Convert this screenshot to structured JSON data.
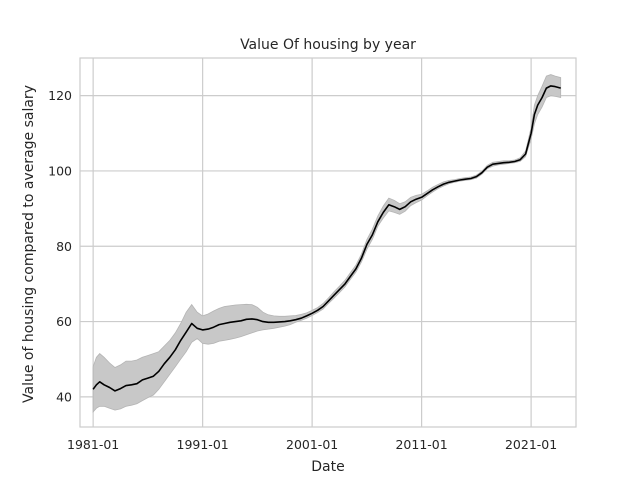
{
  "chart_data": {
    "type": "line",
    "title": "Value Of housing by year",
    "xlabel": "Date",
    "ylabel": "Value of housing compared to average salary",
    "x_ticks": [
      "1981-01",
      "1991-01",
      "2001-01",
      "2011-01",
      "2021-01"
    ],
    "y_ticks": [
      40,
      60,
      80,
      100,
      120
    ],
    "xlim": [
      1979.8,
      2025.1
    ],
    "ylim": [
      32,
      130
    ],
    "grid": true,
    "colors": {
      "line": "#000000",
      "band": "#c8c8c8",
      "band_edge": "#b4b4b4",
      "grid": "#cccccc",
      "frame": "#cccccc"
    },
    "series": [
      {
        "x": [
          1981.0,
          1981.3,
          1981.6,
          1982.0,
          1982.5,
          1983.0,
          1983.5,
          1984.0,
          1984.5,
          1985.0,
          1985.5,
          1986.0,
          1986.5,
          1987.0,
          1987.5,
          1988.0,
          1988.5,
          1989.0,
          1989.5,
          1990.0,
          1990.5,
          1991.0,
          1991.5,
          1992.0,
          1992.5,
          1993.0,
          1993.5,
          1994.0,
          1994.5,
          1995.0,
          1995.5,
          1996.0,
          1996.5,
          1997.0,
          1997.5,
          1998.0,
          1998.5,
          1999.0,
          1999.5,
          2000.0,
          2000.5,
          2001.0,
          2001.5,
          2002.0,
          2002.5,
          2003.0,
          2003.5,
          2004.0,
          2004.5,
          2005.0,
          2005.5,
          2006.0,
          2006.5,
          2007.0,
          2007.5,
          2008.0,
          2008.5,
          2009.0,
          2009.5,
          2010.0,
          2010.5,
          2011.0,
          2011.5,
          2012.0,
          2012.5,
          2013.0,
          2013.5,
          2014.0,
          2014.5,
          2015.0,
          2015.5,
          2016.0,
          2016.5,
          2017.0,
          2017.5,
          2018.0,
          2018.5,
          2019.0,
          2019.5,
          2020.0,
          2020.5,
          2021.0,
          2021.3,
          2021.6,
          2022.0,
          2022.4,
          2022.8,
          2023.2,
          2023.7
        ],
        "y": [
          42.0,
          43.2,
          44.0,
          43.2,
          42.5,
          41.6,
          42.2,
          43.0,
          43.2,
          43.5,
          44.5,
          45.0,
          45.5,
          46.8,
          48.8,
          50.5,
          52.5,
          55.0,
          57.2,
          59.5,
          58.2,
          57.8,
          58.0,
          58.5,
          59.2,
          59.5,
          59.8,
          60.0,
          60.2,
          60.6,
          60.7,
          60.5,
          60.0,
          59.8,
          59.8,
          59.9,
          60.0,
          60.2,
          60.5,
          60.9,
          61.5,
          62.2,
          63.0,
          64.0,
          65.5,
          67.0,
          68.5,
          70.0,
          72.0,
          74.0,
          76.8,
          80.5,
          83.0,
          86.5,
          89.0,
          91.0,
          90.5,
          89.8,
          90.5,
          91.8,
          92.5,
          93.0,
          94.0,
          95.0,
          95.8,
          96.5,
          97.0,
          97.3,
          97.6,
          97.8,
          98.0,
          98.5,
          99.5,
          101.0,
          101.8,
          102.0,
          102.2,
          102.3,
          102.5,
          103.0,
          104.5,
          110.0,
          115.0,
          117.5,
          119.5,
          122.0,
          122.6,
          122.4,
          122.0
        ],
        "lower": [
          36.0,
          37.0,
          37.5,
          37.5,
          37.0,
          36.5,
          36.8,
          37.5,
          37.8,
          38.2,
          39.0,
          39.8,
          40.5,
          42.0,
          44.0,
          46.0,
          48.0,
          50.0,
          52.0,
          54.5,
          55.5,
          54.2,
          54.0,
          54.2,
          54.8,
          55.0,
          55.3,
          55.6,
          56.0,
          56.5,
          57.0,
          57.5,
          57.8,
          58.0,
          58.2,
          58.5,
          58.8,
          59.2,
          59.8,
          60.3,
          60.9,
          61.6,
          62.4,
          63.3,
          64.8,
          66.2,
          67.7,
          69.2,
          71.2,
          73.1,
          75.8,
          79.2,
          81.8,
          85.3,
          87.5,
          89.4,
          89.0,
          88.5,
          89.3,
          90.8,
          91.6,
          92.3,
          93.4,
          94.4,
          95.3,
          96.0,
          96.6,
          97.0,
          97.3,
          97.5,
          97.7,
          98.1,
          99.1,
          100.6,
          101.3,
          101.6,
          101.8,
          102.0,
          102.2,
          102.6,
          103.8,
          108.5,
          112.5,
          115.0,
          117.0,
          119.5,
          120.0,
          119.8,
          119.5
        ],
        "upper": [
          48.0,
          50.5,
          51.5,
          50.5,
          49.0,
          47.8,
          48.5,
          49.5,
          49.5,
          49.8,
          50.5,
          51.0,
          51.5,
          52.0,
          53.5,
          55.0,
          57.0,
          59.5,
          62.5,
          64.5,
          62.5,
          61.5,
          62.0,
          62.8,
          63.5,
          64.0,
          64.2,
          64.4,
          64.5,
          64.6,
          64.5,
          63.8,
          62.5,
          61.8,
          61.5,
          61.4,
          61.4,
          61.5,
          61.6,
          61.9,
          62.3,
          63.0,
          63.7,
          64.8,
          66.3,
          67.9,
          69.4,
          71.0,
          73.0,
          75.0,
          77.9,
          81.8,
          84.5,
          88.0,
          90.7,
          92.8,
          92.2,
          91.3,
          91.8,
          93.0,
          93.5,
          93.8,
          94.7,
          95.7,
          96.4,
          97.1,
          97.5,
          97.7,
          98.0,
          98.2,
          98.4,
          98.9,
          99.9,
          101.5,
          102.3,
          102.5,
          102.7,
          102.7,
          102.9,
          103.5,
          105.3,
          111.5,
          117.5,
          120.0,
          122.5,
          125.2,
          125.6,
          125.2,
          124.8
        ]
      }
    ]
  }
}
